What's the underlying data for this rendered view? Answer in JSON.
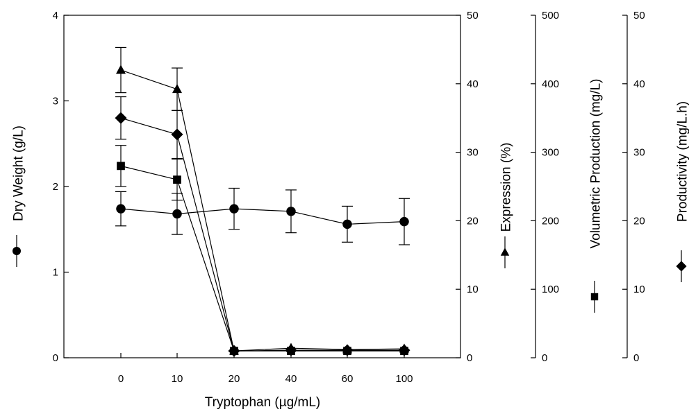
{
  "chart_data": {
    "type": "line",
    "categories": [
      "0",
      "10",
      "20",
      "40",
      "60",
      "100"
    ],
    "xlabel": "Tryptophan (µg/mL)",
    "grid": false,
    "axes": {
      "dry_weight": {
        "label": "Dry Weight (g/L)",
        "range": [
          0,
          4
        ],
        "ticks": [
          "0",
          "1",
          "2",
          "3",
          "4"
        ]
      },
      "expression": {
        "label": "Expression (%)",
        "range": [
          0,
          50
        ],
        "ticks": [
          "0",
          "10",
          "20",
          "30",
          "40",
          "50"
        ]
      },
      "volumetric": {
        "label": "Volumetric Production (mg/L)",
        "range": [
          0,
          500
        ],
        "ticks": [
          "0",
          "100",
          "200",
          "300",
          "400",
          "500"
        ]
      },
      "productivity": {
        "label": "Productivity (mg/L.h)",
        "range": [
          0,
          50
        ],
        "ticks": [
          "0",
          "10",
          "20",
          "30",
          "40",
          "50"
        ]
      }
    },
    "series": [
      {
        "axis": "dry_weight",
        "marker": "circle",
        "values": [
          1.74,
          1.68,
          1.74,
          1.71,
          1.56,
          1.59
        ],
        "errors": [
          0.2,
          0.24,
          0.24,
          0.25,
          0.21,
          0.27
        ]
      },
      {
        "axis": "expression",
        "marker": "triangle",
        "values": [
          42.0,
          39.2,
          1.0,
          1.4,
          1.2,
          1.3
        ],
        "errors": [
          3.3,
          3.1,
          0,
          0,
          0,
          0
        ]
      },
      {
        "axis": "volumetric",
        "marker": "square",
        "values": [
          280,
          260,
          10,
          10,
          10,
          10
        ],
        "errors": [
          30,
          30,
          0,
          0,
          0,
          0
        ]
      },
      {
        "axis": "productivity",
        "marker": "diamond",
        "values": [
          35.0,
          32.6,
          1.0,
          1.1,
          1.1,
          1.1
        ],
        "errors": [
          3.1,
          3.5,
          0,
          0,
          0,
          0
        ]
      }
    ]
  }
}
